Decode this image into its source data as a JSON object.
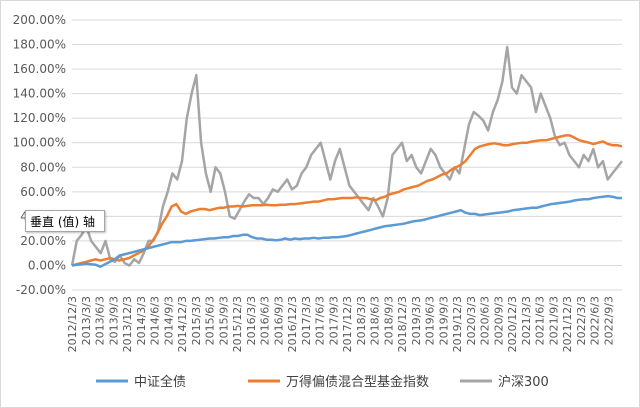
{
  "tooltip": "垂直 (值) 轴",
  "chart_data": {
    "type": "line",
    "ylim": [
      -20,
      200
    ],
    "y_ticks": [
      -20,
      0,
      20,
      40,
      60,
      80,
      100,
      120,
      140,
      160,
      180,
      200
    ],
    "y_tick_labels": [
      "-20.00%",
      "0.00%",
      "20.00%",
      "40.00%",
      "60.00%",
      "80.00%",
      "100.00%",
      "120.00%",
      "140.00%",
      "160.00%",
      "180.00%",
      "200.00%"
    ],
    "x_tick_labels": [
      "2012/12/3",
      "2013/3/3",
      "2013/6/3",
      "2013/9/3",
      "2013/12/3",
      "2014/3/3",
      "2014/6/3",
      "2014/9/3",
      "2014/12/3",
      "2015/3/3",
      "2015/6/3",
      "2015/9/3",
      "2015/12/3",
      "2016/3/3",
      "2016/6/3",
      "2016/9/3",
      "2016/12/3",
      "2017/3/3",
      "2017/6/3",
      "2017/9/3",
      "2017/12/3",
      "2018/3/3",
      "2018/6/3",
      "2018/9/3",
      "2018/12/3",
      "2019/3/3",
      "2019/6/3",
      "2019/9/3",
      "2019/12/3",
      "2020/3/3",
      "2020/6/3",
      "2020/9/3",
      "2020/12/3",
      "2021/3/3",
      "2021/6/3",
      "2021/9/3",
      "2021/12/3",
      "2022/3/3",
      "2022/6/3",
      "2022/9/3"
    ],
    "grid": true,
    "legend_position": "bottom",
    "series": [
      {
        "name": "中证全债",
        "color": "#5b9bd5",
        "values": [
          0,
          0.5,
          1,
          1.5,
          1,
          0.5,
          -1,
          1,
          3,
          5,
          8,
          9,
          10,
          11,
          12,
          13,
          14,
          15,
          16,
          17,
          18,
          19,
          19,
          19,
          20,
          20,
          20.5,
          21,
          21.5,
          22,
          22,
          22.5,
          23,
          23,
          24,
          24,
          25,
          25,
          23,
          22,
          22,
          21,
          21,
          20.5,
          21,
          22,
          21,
          22,
          21.5,
          22,
          22,
          22.5,
          22,
          22.5,
          22.5,
          23,
          23,
          23.5,
          24,
          25,
          26,
          27,
          28,
          29,
          30,
          31,
          32,
          32.5,
          33,
          33.5,
          34,
          35,
          36,
          36.5,
          37,
          38,
          39,
          40,
          41,
          42,
          43,
          44,
          45,
          43,
          42,
          42,
          41,
          41.5,
          42,
          42.5,
          43,
          43.5,
          44,
          45,
          45.5,
          46,
          46.5,
          47,
          47,
          48,
          49,
          50,
          50.5,
          51,
          51.5,
          52,
          53,
          53.5,
          54,
          54,
          55,
          55.5,
          56,
          56.5,
          56,
          55,
          55
        ]
      },
      {
        "name": "万得偏债混合型基金指数",
        "color": "#ed7d31",
        "values": [
          0,
          1,
          2,
          3,
          4,
          5,
          4,
          5,
          6,
          5,
          4,
          5,
          6,
          8,
          10,
          12,
          15,
          20,
          26,
          34,
          40,
          48,
          50,
          44,
          42,
          44,
          45,
          46,
          46,
          45,
          46,
          47,
          47,
          48,
          48,
          48.5,
          48,
          48.5,
          49,
          49,
          49,
          49.5,
          49,
          49,
          49.5,
          49.5,
          50,
          50,
          50.5,
          51,
          51.5,
          52,
          52,
          53,
          54,
          54,
          54.5,
          55,
          55,
          55,
          55.5,
          55,
          55,
          54,
          53,
          55,
          56,
          58,
          59,
          60,
          62,
          63,
          64,
          65,
          67,
          69,
          70,
          72,
          74,
          75,
          78,
          80,
          82,
          85,
          90,
          95,
          97,
          98,
          99,
          99.5,
          99,
          98,
          98,
          99,
          99.5,
          100,
          100,
          101,
          101.5,
          102,
          102,
          103,
          104,
          105,
          106,
          106,
          104,
          102,
          101,
          100,
          99,
          100,
          101,
          99,
          98,
          98,
          97
        ]
      },
      {
        "name": "沪深300",
        "color": "#a5a5a5",
        "values": [
          0,
          20,
          25,
          32,
          20,
          15,
          10,
          20,
          5,
          3,
          8,
          2,
          0,
          5,
          2,
          10,
          20,
          20,
          28,
          48,
          60,
          75,
          70,
          85,
          120,
          140,
          155,
          100,
          75,
          60,
          80,
          75,
          60,
          40,
          38,
          45,
          52,
          58,
          55,
          55,
          50,
          55,
          62,
          60,
          65,
          70,
          62,
          65,
          75,
          80,
          90,
          95,
          100,
          85,
          70,
          85,
          95,
          80,
          65,
          60,
          55,
          50,
          45,
          55,
          48,
          40,
          55,
          90,
          95,
          100,
          85,
          90,
          80,
          75,
          85,
          95,
          90,
          80,
          75,
          70,
          80,
          75,
          95,
          115,
          125,
          122,
          118,
          110,
          125,
          135,
          150,
          178,
          145,
          140,
          155,
          150,
          145,
          125,
          140,
          130,
          120,
          105,
          98,
          100,
          90,
          85,
          80,
          90,
          85,
          95,
          80,
          85,
          70,
          75,
          80,
          85
        ]
      }
    ]
  }
}
